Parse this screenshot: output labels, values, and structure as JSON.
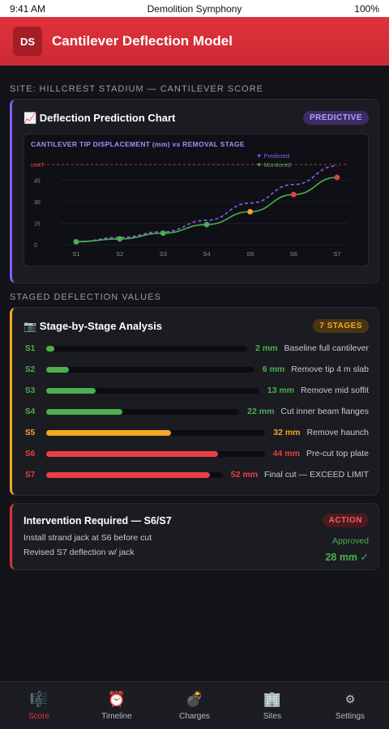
{
  "status_bar": {
    "time": "9:41 AM",
    "title": "Demolition Symphony",
    "battery": "100%"
  },
  "header": {
    "logo": "DS",
    "title": "Cantilever Deflection Model"
  },
  "site_label": "SITE: HILLCREST STADIUM — CANTILEVER SCORE",
  "prediction_card": {
    "title": "📈 Deflection Prediction Chart",
    "badge": "PREDICTIVE"
  },
  "chart_data": {
    "type": "line",
    "title": "CANTILEVER TIP DISPLACEMENT (mm) vs REMOVAL STAGE",
    "categories": [
      "S1",
      "S2",
      "S3",
      "S4",
      "S5",
      "S6",
      "S7"
    ],
    "series": [
      {
        "name": "Predicted",
        "values": [
          2,
          5,
          9,
          17,
          29,
          42,
          55
        ],
        "color": "#8b5cf6",
        "style": "dashed"
      },
      {
        "name": "Monitored",
        "values": [
          2,
          4,
          8,
          14,
          23,
          35,
          47
        ],
        "color": "#4caf50",
        "style": "solid"
      }
    ],
    "point_colors": [
      "#4caf50",
      "#4caf50",
      "#4caf50",
      "#4caf50",
      "#f5a623",
      "#e84040",
      "#e84040"
    ],
    "yticks": [
      0,
      15,
      30,
      45
    ],
    "ylim": [
      0,
      60
    ],
    "limit": {
      "label": "LIMIT",
      "value": 56,
      "color": "#e84040"
    },
    "legend": [
      "▼ Predicted",
      "▼ Monitored"
    ],
    "legend_position": "top-right"
  },
  "staged_label": "STAGED DEFLECTION VALUES",
  "stage_card": {
    "title": "📷 Stage-by-Stage Analysis",
    "badge": "7 STAGES",
    "max_value": 56,
    "stages": [
      {
        "id": "S1",
        "value": 2,
        "value_text": "2 mm",
        "desc": "Baseline full cantilever",
        "color": "#4caf50"
      },
      {
        "id": "S2",
        "value": 6,
        "value_text": "6 mm",
        "desc": "Remove tip 4 m slab",
        "color": "#4caf50"
      },
      {
        "id": "S3",
        "value": 13,
        "value_text": "13 mm",
        "desc": "Remove mid soffit",
        "color": "#4caf50"
      },
      {
        "id": "S4",
        "value": 22,
        "value_text": "22 mm",
        "desc": "Cut inner beam flanges",
        "color": "#4caf50"
      },
      {
        "id": "S5",
        "value": 32,
        "value_text": "32 mm",
        "desc": "Remove haunch",
        "color": "#f5a623"
      },
      {
        "id": "S6",
        "value": 44,
        "value_text": "44 mm",
        "desc": "Pre-cut top plate",
        "color": "#e84040"
      },
      {
        "id": "S7",
        "value": 52,
        "value_text": "52 mm",
        "desc": "Final cut — EXCEED LIMIT",
        "color": "#e84040"
      }
    ]
  },
  "intervention": {
    "title": "Intervention Required — S6/S7",
    "badge": "ACTION",
    "line1": "Install strand jack at S6 before cut",
    "line2": "Revised S7 deflection w/ jack",
    "status": "Approved",
    "value": "28 mm ✓"
  },
  "tabs": [
    {
      "label": "Score",
      "icon": "🎼",
      "icon_name": "score-icon",
      "active": true
    },
    {
      "label": "Timeline",
      "icon": "⏰",
      "icon_name": "alarm-clock-icon",
      "active": false
    },
    {
      "label": "Charges",
      "icon": "💣",
      "icon_name": "bomb-icon",
      "active": false
    },
    {
      "label": "Sites",
      "icon": "🏢",
      "icon_name": "building-icon",
      "active": false
    },
    {
      "label": "Settings",
      "icon": "⚙",
      "icon_name": "gear-icon",
      "active": false
    }
  ]
}
